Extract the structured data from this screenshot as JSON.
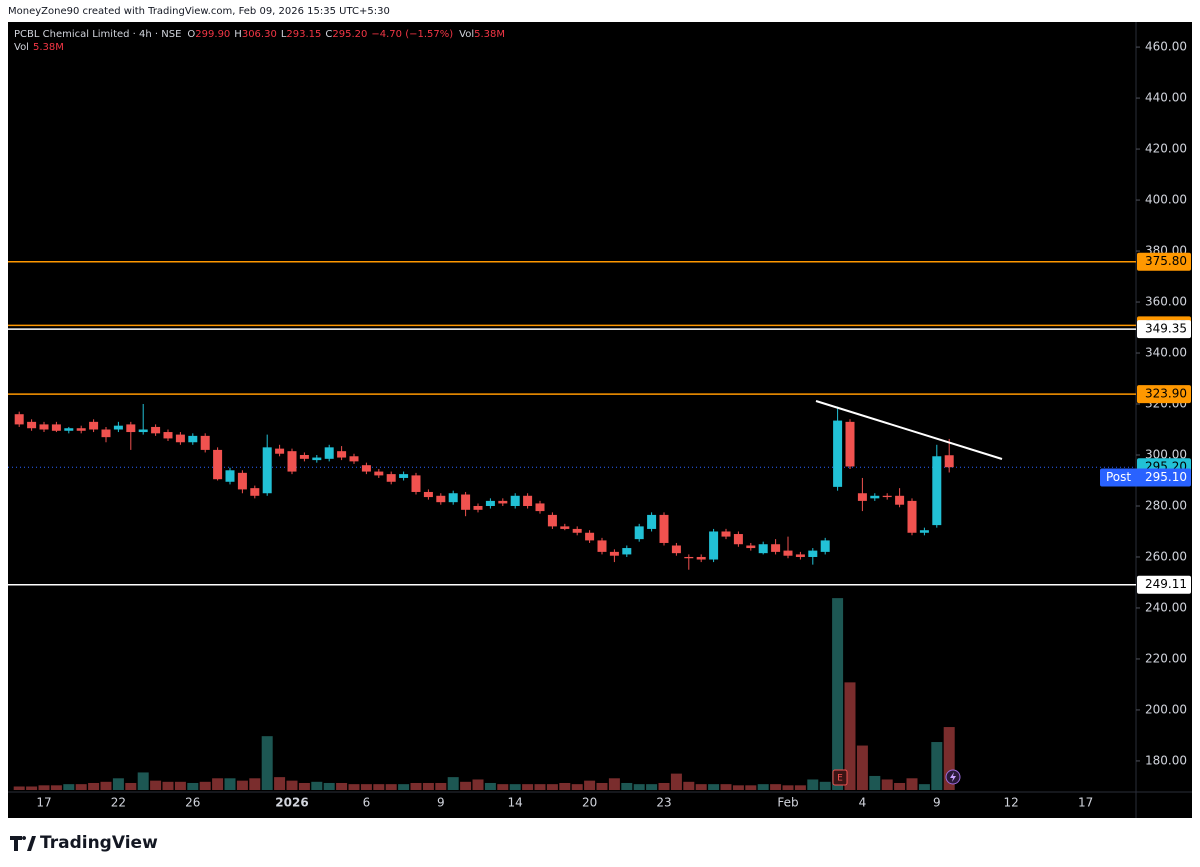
{
  "header": {
    "caption": "MoneyZone90 created with TradingView.com, Feb 09, 2026 15:35 UTC+5:30"
  },
  "legend": {
    "symbol": "PCBL Chemical Limited · 4h · NSE",
    "o_label": "O",
    "o": "299.90",
    "h_label": "H",
    "h": "306.30",
    "l_label": "L",
    "l": "293.15",
    "c_label": "C",
    "c": "295.20",
    "change": "−4.70 (−1.57%)",
    "vol_label": "Vol",
    "vol": "5.38M"
  },
  "footer": {
    "brand": "TradingView"
  },
  "chart_data": {
    "type": "candlestick",
    "categories": [
      null,
      null,
      "17",
      null,
      null,
      null,
      null,
      null,
      "22",
      null,
      null,
      null,
      null,
      null,
      "26",
      null,
      null,
      null,
      null,
      null,
      null,
      null,
      "2026",
      null,
      null,
      null,
      null,
      null,
      "6",
      null,
      null,
      null,
      null,
      null,
      "9",
      null,
      null,
      null,
      null,
      null,
      "14",
      null,
      null,
      null,
      null,
      null,
      "20",
      null,
      null,
      null,
      null,
      null,
      "23",
      null,
      null,
      null,
      null,
      null,
      null,
      null,
      null,
      null,
      "Feb",
      null,
      null,
      null,
      null,
      null,
      "4",
      null,
      null,
      null,
      null,
      null,
      "9",
      null,
      null,
      null,
      null,
      null,
      "12",
      null,
      null,
      null,
      null,
      null,
      "17"
    ],
    "open": [
      316,
      313,
      312,
      312,
      309.5,
      310.5,
      313,
      310,
      310,
      312,
      309,
      311,
      309,
      308,
      305,
      307.5,
      302,
      289.5,
      293,
      287,
      285,
      302.5,
      301.5,
      300,
      298,
      298.5,
      301.5,
      299.5,
      296,
      293.5,
      292.5,
      291,
      292,
      285.5,
      284,
      281.5,
      284.5,
      280,
      280,
      282,
      280,
      284,
      281,
      276.5,
      272,
      271,
      269.5,
      266.5,
      262,
      261,
      267,
      271,
      276.5,
      264.5,
      260,
      260,
      259,
      270,
      269,
      264.5,
      261.5,
      265,
      262.5,
      261,
      260,
      262,
      287.5,
      313,
      285,
      283,
      284,
      284,
      282,
      269.5,
      272.5,
      299.9,
      null,
      null,
      null,
      null,
      null,
      null,
      null,
      null,
      null,
      null,
      null
    ],
    "high": [
      317,
      314,
      313,
      313,
      311,
      311.5,
      314,
      311,
      313,
      313,
      320,
      312,
      310,
      309,
      308.5,
      308.5,
      303,
      295,
      294,
      288,
      308,
      304,
      302.5,
      301,
      300,
      304,
      303.5,
      300.5,
      297,
      294.5,
      293.5,
      293.5,
      293,
      286.5,
      285,
      286,
      285.5,
      281,
      283,
      283,
      285,
      285,
      282,
      277.5,
      273,
      272,
      270.5,
      267.5,
      263,
      264.5,
      273,
      277.5,
      277.5,
      265.5,
      261,
      261,
      271,
      271,
      270,
      265.5,
      266,
      267,
      268,
      262,
      263.5,
      267.5,
      319,
      314,
      291,
      285,
      285,
      287,
      283,
      271.5,
      304,
      306.3,
      null,
      null,
      null,
      null,
      null,
      null,
      null,
      null,
      null,
      null,
      null
    ],
    "low": [
      311,
      309.5,
      309,
      309,
      308.5,
      308.5,
      309,
      305,
      309,
      302,
      308,
      307.5,
      305.5,
      304,
      304,
      301,
      290,
      288.5,
      285,
      283,
      284,
      299.5,
      292.5,
      297.5,
      297,
      297.5,
      298,
      296.5,
      292.5,
      291,
      288.5,
      290,
      284.5,
      282.5,
      280.5,
      280.5,
      276,
      277.5,
      279,
      280,
      279,
      279,
      277,
      271,
      270.5,
      268.5,
      265.5,
      261,
      258,
      260,
      266,
      270,
      264.5,
      260.5,
      255,
      258,
      258,
      267,
      264,
      262.5,
      261,
      261,
      259.5,
      259,
      257,
      261,
      286,
      294.5,
      278,
      282,
      282.5,
      279.5,
      268.5,
      268.5,
      271.5,
      293.15,
      null,
      null,
      null,
      null,
      null,
      null,
      null,
      null,
      null,
      null,
      null
    ],
    "close": [
      312,
      310.5,
      310,
      309.5,
      310.5,
      309.5,
      310,
      307,
      311.5,
      309,
      310,
      308.5,
      306.5,
      305,
      307.5,
      302,
      290.5,
      294,
      286.5,
      284,
      303,
      300.5,
      293.5,
      298.5,
      299,
      303,
      299,
      297.5,
      293.5,
      292,
      289.5,
      292.5,
      285.5,
      283.5,
      281.5,
      285,
      278.5,
      278.5,
      282,
      281,
      284,
      280,
      278,
      272,
      271,
      269.5,
      266.5,
      262,
      260.5,
      263.5,
      272,
      276.5,
      265.5,
      261.5,
      259.5,
      259,
      270,
      268,
      265,
      263.5,
      265,
      262,
      260.5,
      260,
      262.5,
      266.5,
      313.5,
      295.5,
      282,
      284,
      283.5,
      280.5,
      269.5,
      270.5,
      299.5,
      295.2,
      null,
      null,
      null,
      null,
      null,
      null,
      null,
      null,
      null,
      null,
      null
    ],
    "volume": [
      0.3,
      0.3,
      0.4,
      0.4,
      0.5,
      0.5,
      0.6,
      0.7,
      1.0,
      0.6,
      1.5,
      0.8,
      0.7,
      0.7,
      0.6,
      0.7,
      1.0,
      1.0,
      0.8,
      1.0,
      4.6,
      1.1,
      0.8,
      0.6,
      0.7,
      0.6,
      0.6,
      0.5,
      0.5,
      0.5,
      0.5,
      0.5,
      0.6,
      0.6,
      0.6,
      1.1,
      0.7,
      0.9,
      0.6,
      0.5,
      0.5,
      0.5,
      0.5,
      0.5,
      0.6,
      0.5,
      0.8,
      0.6,
      1.0,
      0.6,
      0.5,
      0.5,
      0.6,
      1.4,
      0.7,
      0.5,
      0.5,
      0.5,
      0.4,
      0.4,
      0.5,
      0.5,
      0.4,
      0.4,
      0.9,
      0.7,
      16.4,
      9.2,
      3.8,
      1.2,
      0.9,
      0.6,
      1.0,
      0.5,
      4.1,
      5.38,
      null,
      null,
      null,
      null,
      null,
      null,
      null,
      null,
      null,
      null,
      null
    ],
    "up_color": "#22c1d6",
    "down_color": "#f0524f",
    "volume_up_color": "#1d5753",
    "volume_down_color": "#7a2d2d",
    "ylim": [
      168.6,
      466.7
    ],
    "yticks": [
      {
        "value": 180,
        "label": "180.00"
      },
      {
        "value": 200,
        "label": "200.00"
      },
      {
        "value": 220,
        "label": "220.00"
      },
      {
        "value": 240,
        "label": "240.00"
      },
      {
        "value": 260,
        "label": "260.00"
      },
      {
        "value": 280,
        "label": "280.00"
      },
      {
        "value": 300,
        "label": "300.00"
      },
      {
        "value": 320,
        "label": "320.00"
      },
      {
        "value": 340,
        "label": "340.00"
      },
      {
        "value": 360,
        "label": "360.00"
      },
      {
        "value": 380,
        "label": "380.00"
      },
      {
        "value": 400,
        "label": "400.00"
      },
      {
        "value": 420,
        "label": "420.00"
      },
      {
        "value": 440,
        "label": "440.00"
      },
      {
        "value": 460,
        "label": "460.00"
      }
    ],
    "levels": [
      {
        "value": 375.8,
        "label": "375.80",
        "color": "#ff9800"
      },
      {
        "value": 350.85,
        "label": "350.85",
        "color": "#ff9800"
      },
      {
        "value": 349.35,
        "label": "349.35",
        "color": "#ffffff"
      },
      {
        "value": 323.9,
        "label": "323.90",
        "color": "#ff9800"
      },
      {
        "value": 249.11,
        "label": "249.11",
        "color": "#ffffff"
      }
    ],
    "last_price": {
      "value": 295.2,
      "label": "295.20",
      "color": "#22c1d6"
    },
    "post_price": {
      "name": "Post",
      "value": 295.1,
      "label": "295.10",
      "color": "#2962ff"
    }
  }
}
